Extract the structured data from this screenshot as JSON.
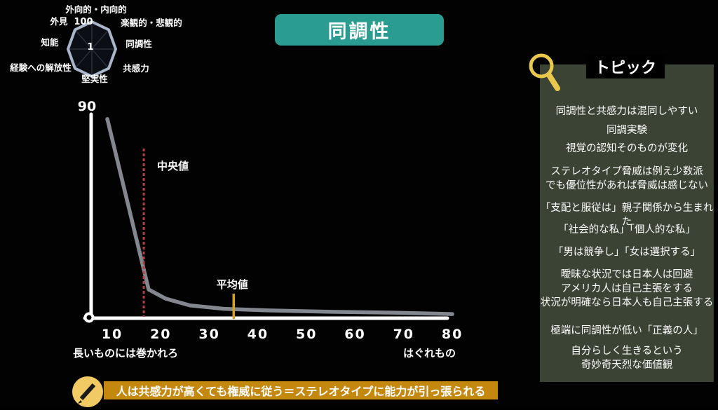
{
  "title_banner": {
    "label": "同調性",
    "bg_color": "#2b9c90"
  },
  "radar": {
    "scale_max_label": "100",
    "scale_center_label": "1",
    "axes": [
      "外向的・内向的",
      "楽観的・悲観的",
      "同調性",
      "共感力",
      "堅実性",
      "経験への解放性",
      "知能",
      "外見"
    ],
    "outline_color": "#a9b6c9"
  },
  "distribution_chart": {
    "y_top_label": "90",
    "x_ticks": [
      "10",
      "20",
      "30",
      "40",
      "50",
      "60",
      "70",
      "80"
    ],
    "median_label": "中央値",
    "mean_label": "平均値",
    "x_left_label": "長いものには巻かれろ",
    "x_right_label": "はぐれもの",
    "curve_color": "#83878f",
    "median_color": "#b8403e",
    "mean_color": "#d4a017"
  },
  "topic_panel": {
    "title": "トピック",
    "icon": "magnifier-icon",
    "bg_color": "#3b4334",
    "items": [
      "同調性と共感力は混同しやすい",
      "同調実験",
      "視覚の認知そのものが変化",
      "ステレオタイプ脅威は例え少数派\nでも優位性があれば脅威は感じない",
      "「支配と服従は」親子関係から生まれた",
      "「社会的な私」「個人的な私」",
      "「男は競争し」「女は選択する」",
      "曖昧な状況では日本人は回避\nアメリカ人は自己主張をする\n状況が明確なら日本人も自己主張する",
      "極端に同調性が低い「正義の人」",
      "自分らしく生きるという\n奇妙奇天烈な価値観"
    ]
  },
  "footer": {
    "icon": "pencil-icon",
    "note": "人は共感力が高くても権威に従う＝ステレオタイプに能力が引っ張られる",
    "bg_color": "#c4880f"
  },
  "chart_data": [
    {
      "type": "radar",
      "axes": [
        "外向的・内向的",
        "楽観的・悲観的",
        "同調性",
        "共感力",
        "堅実性",
        "経験への解放性",
        "知能",
        "外見"
      ],
      "scale": {
        "center_label": "1",
        "max_label": "100"
      },
      "series": [],
      "note": "empty octagonal frame with spokes, no data series plotted",
      "legend": "none"
    },
    {
      "type": "line",
      "title": "",
      "x": [
        9,
        17.5,
        21,
        26,
        33,
        42,
        55,
        68,
        80
      ],
      "y": [
        87,
        12,
        8,
        5,
        3.5,
        2.8,
        2.2,
        1.8,
        1.2
      ],
      "xlabel_left": "長いものには巻かれろ",
      "xlabel_right": "はぐれもの",
      "ylabel": "",
      "x_tick_values": [
        10,
        20,
        30,
        40,
        50,
        60,
        70,
        80
      ],
      "y_top_tick": 90,
      "xlim": [
        8,
        81
      ],
      "ylim": [
        0,
        90
      ],
      "grid": false,
      "legend_position": "none",
      "annotations": [
        {
          "label": "中央値",
          "x": 16.5,
          "style": "dashed-vertical-line",
          "color": "#b8403e"
        },
        {
          "label": "平均値",
          "x": 35,
          "style": "solid-vertical-tick",
          "color": "#d4a017"
        }
      ]
    }
  ]
}
